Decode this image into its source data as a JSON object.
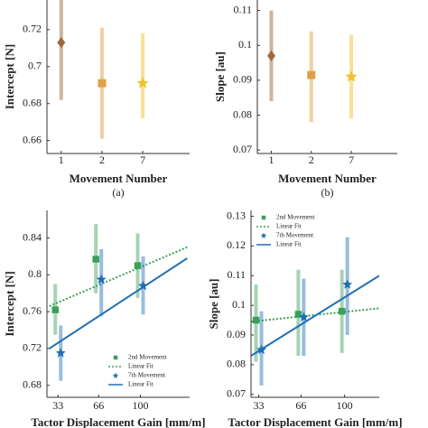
{
  "chart_data": [
    {
      "type": "errorbar",
      "ylabel": "Intercept [N]",
      "xlabel": "Movement Number",
      "caption": "(a)",
      "categories": [
        "1",
        "2",
        "7"
      ],
      "values": [
        0.713,
        0.691,
        0.691
      ],
      "error_low": [
        0.682,
        0.661,
        0.672
      ],
      "error_high": [
        0.744,
        0.721,
        0.718
      ],
      "colors": [
        "#a0693c",
        "#e0a04a",
        "#f2c230"
      ],
      "markers": [
        "diamond",
        "square",
        "star"
      ],
      "ylim": [
        0.653,
        0.736
      ],
      "yticks": [
        0.66,
        0.68,
        0.7,
        0.72
      ]
    },
    {
      "type": "errorbar",
      "ylabel": "Slope [au]",
      "xlabel": "Movement Number",
      "caption": "(b)",
      "categories": [
        "1",
        "2",
        "7"
      ],
      "values": [
        0.097,
        0.0915,
        0.091
      ],
      "error_low": [
        0.084,
        0.078,
        0.079
      ],
      "error_high": [
        0.11,
        0.104,
        0.103
      ],
      "colors": [
        "#a0693c",
        "#e0a04a",
        "#f2c230"
      ],
      "markers": [
        "diamond",
        "square",
        "star"
      ],
      "ylim": [
        0.069,
        0.113
      ],
      "yticks": [
        0.07,
        0.08,
        0.09,
        0.1,
        0.11
      ]
    },
    {
      "type": "scatter",
      "ylabel": "Intercept [N]",
      "xlabel": "Tactor Displacement Gain [mm/m]",
      "legend": "lower right",
      "xlim": [
        24,
        140
      ],
      "xticks": [
        33,
        66,
        100
      ],
      "ylim": [
        0.667,
        0.87
      ],
      "yticks": [
        0.68,
        0.72,
        0.76,
        0.8,
        0.84
      ],
      "series": [
        {
          "name": "2nd Movement",
          "color": "#3aa058",
          "marker": "square",
          "x": [
            33,
            66,
            100
          ],
          "values": [
            0.762,
            0.817,
            0.81
          ],
          "error_low": [
            0.735,
            0.78,
            0.775
          ],
          "error_high": [
            0.79,
            0.855,
            0.845
          ]
        },
        {
          "name": "Linear Fit",
          "color": "#3aa058",
          "line": "dotted",
          "x": [
            26,
            138
          ],
          "values": [
            0.766,
            0.83
          ]
        },
        {
          "name": "7th Movement",
          "color": "#1f6fb4",
          "marker": "star",
          "x": [
            33,
            66,
            100
          ],
          "values": [
            0.715,
            0.795,
            0.788
          ],
          "error_low": [
            0.685,
            0.755,
            0.757
          ],
          "error_high": [
            0.745,
            0.828,
            0.82
          ]
        },
        {
          "name": "Linear Fit",
          "color": "#1f6fb4",
          "line": "solid",
          "x": [
            26,
            138
          ],
          "values": [
            0.72,
            0.818
          ]
        }
      ]
    },
    {
      "type": "scatter",
      "ylabel": "Slope [au]",
      "xlabel": "Tactor Displacement Gain [mm/m]",
      "legend": "upper left",
      "xlim": [
        27,
        127
      ],
      "xticks": [
        33,
        66,
        100
      ],
      "ylim": [
        0.069,
        0.132
      ],
      "yticks": [
        0.07,
        0.08,
        0.09,
        0.1,
        0.11,
        0.12,
        0.13
      ],
      "series": [
        {
          "name": "2nd Movement",
          "color": "#3aa058",
          "marker": "square",
          "x": [
            33,
            66,
            100
          ],
          "values": [
            0.095,
            0.097,
            0.098
          ],
          "error_low": [
            0.081,
            0.083,
            0.084
          ],
          "error_high": [
            0.107,
            0.112,
            0.112
          ]
        },
        {
          "name": "Linear Fit",
          "color": "#3aa058",
          "line": "dotted",
          "x": [
            27,
            127
          ],
          "values": [
            0.0945,
            0.099
          ]
        },
        {
          "name": "7th Movement",
          "color": "#1f6fb4",
          "marker": "star",
          "x": [
            33,
            66,
            100
          ],
          "values": [
            0.085,
            0.096,
            0.107
          ],
          "error_low": [
            0.073,
            0.083,
            0.09
          ],
          "error_high": [
            0.098,
            0.109,
            0.123
          ]
        },
        {
          "name": "Linear Fit",
          "color": "#1f6fb4",
          "line": "solid",
          "x": [
            27,
            127
          ],
          "values": [
            0.083,
            0.11
          ]
        }
      ]
    }
  ]
}
